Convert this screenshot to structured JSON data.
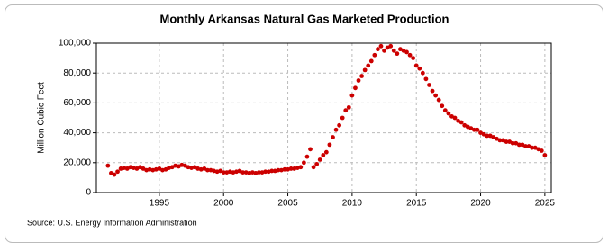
{
  "chart_data": {
    "type": "scatter",
    "title": "Monthly Arkansas Natural Gas Marketed Production",
    "y_label": "Million Cubic Feet",
    "source": "Source: U.S. Energy Information Administration",
    "color": "#cc0000",
    "grid": true,
    "xlim": [
      1990.1,
      2025.5
    ],
    "ylim": [
      0,
      100000
    ],
    "xticks": [
      1995,
      2000,
      2005,
      2010,
      2015,
      2020,
      2025
    ],
    "yticks": [
      0,
      {
        "value": 20000,
        "label": "20,000"
      },
      {
        "value": 40000,
        "label": "40,000"
      },
      {
        "value": 60000,
        "label": "60,000"
      },
      {
        "value": 80000,
        "label": "80,000"
      },
      {
        "value": 100000,
        "label": "100,000"
      }
    ],
    "x": [
      1991,
      1991.25,
      1991.5,
      1991.75,
      1992,
      1992.25,
      1992.5,
      1992.75,
      1993,
      1993.25,
      1993.5,
      1993.75,
      1994,
      1994.25,
      1994.5,
      1994.75,
      1995,
      1995.25,
      1995.5,
      1995.75,
      1996,
      1996.25,
      1996.5,
      1996.75,
      1997,
      1997.25,
      1997.5,
      1997.75,
      1998,
      1998.25,
      1998.5,
      1998.75,
      1999,
      1999.25,
      1999.5,
      1999.75,
      2000,
      2000.25,
      2000.5,
      2000.75,
      2001,
      2001.25,
      2001.5,
      2001.75,
      2002,
      2002.25,
      2002.5,
      2002.75,
      2003,
      2003.25,
      2003.5,
      2003.75,
      2004,
      2004.25,
      2004.5,
      2004.75,
      2005,
      2005.25,
      2005.5,
      2005.75,
      2006,
      2006.25,
      2006.5,
      2006.75,
      2007,
      2007.25,
      2007.5,
      2007.75,
      2008,
      2008.25,
      2008.5,
      2008.75,
      2009,
      2009.25,
      2009.5,
      2009.75,
      2010,
      2010.25,
      2010.5,
      2010.75,
      2011,
      2011.25,
      2011.5,
      2011.75,
      2012,
      2012.25,
      2012.5,
      2012.75,
      2013,
      2013.25,
      2013.5,
      2013.75,
      2014,
      2014.25,
      2014.5,
      2014.75,
      2015,
      2015.25,
      2015.5,
      2015.75,
      2016,
      2016.25,
      2016.5,
      2016.75,
      2017,
      2017.25,
      2017.5,
      2017.75,
      2018,
      2018.25,
      2018.5,
      2018.75,
      2019,
      2019.25,
      2019.5,
      2019.75,
      2020,
      2020.25,
      2020.5,
      2020.75,
      2021,
      2021.25,
      2021.5,
      2021.75,
      2022,
      2022.25,
      2022.5,
      2022.75,
      2023,
      2023.25,
      2023.5,
      2023.75,
      2024,
      2024.25,
      2024.5,
      2024.75,
      2025
    ],
    "values": [
      18000,
      13000,
      12000,
      14000,
      16000,
      16500,
      16000,
      17000,
      16500,
      16000,
      17000,
      16000,
      15000,
      15500,
      15000,
      15500,
      16000,
      15000,
      15500,
      16500,
      17000,
      18000,
      17500,
      18500,
      18000,
      17000,
      16500,
      17000,
      16000,
      15500,
      16000,
      15000,
      15000,
      14500,
      14000,
      14500,
      13500,
      13500,
      14000,
      13500,
      14000,
      14500,
      13500,
      13500,
      13000,
      13500,
      13000,
      13500,
      13500,
      14000,
      14000,
      14500,
      14500,
      15000,
      15000,
      15500,
      15500,
      16000,
      16000,
      16500,
      17000,
      20000,
      24000,
      29000,
      17000,
      19000,
      22000,
      25000,
      27000,
      32000,
      37000,
      42000,
      45000,
      50000,
      55000,
      57000,
      65000,
      70000,
      75000,
      78000,
      82000,
      85000,
      88000,
      92000,
      96000,
      98000,
      95000,
      97000,
      98000,
      95000,
      93000,
      96000,
      95000,
      94000,
      92000,
      90000,
      85000,
      83000,
      80000,
      76000,
      72000,
      68000,
      65000,
      62000,
      58000,
      55000,
      53000,
      51000,
      50000,
      48000,
      47000,
      45000,
      44000,
      43000,
      42000,
      42000,
      40000,
      39000,
      38000,
      38000,
      37000,
      36000,
      35000,
      35000,
      34000,
      34000,
      33000,
      33000,
      32000,
      32000,
      31000,
      31000,
      30000,
      30000,
      29000,
      28000,
      25000
    ]
  }
}
